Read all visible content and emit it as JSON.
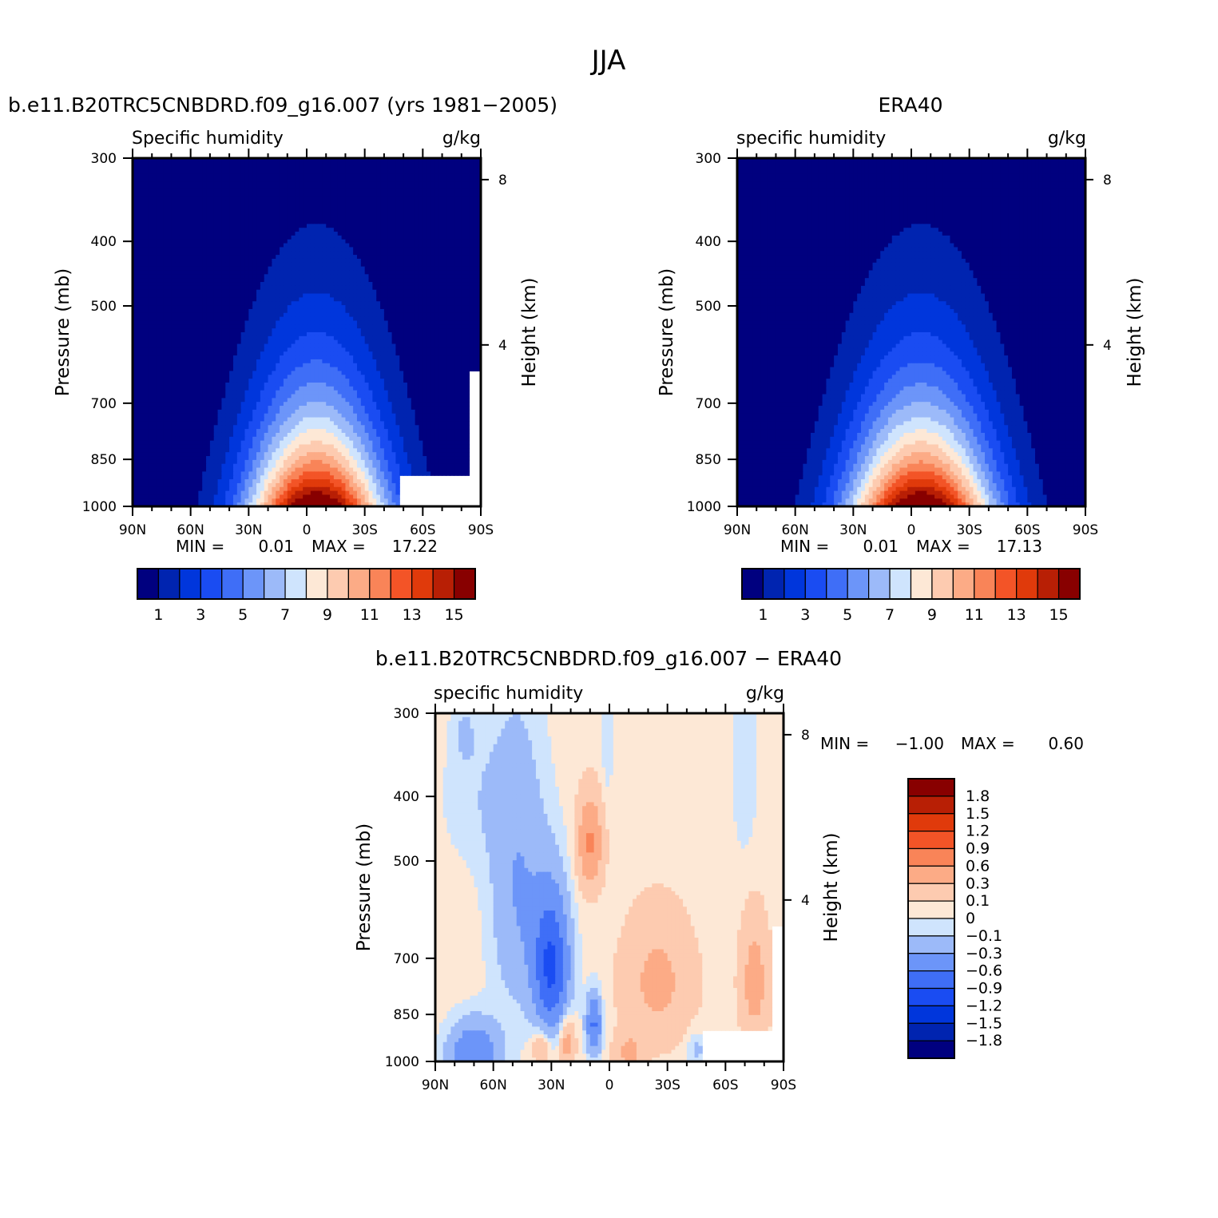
{
  "figure": {
    "title": "JJA"
  },
  "palettes": {
    "full": [
      "#00007f",
      "#0024b0",
      "#0036dc",
      "#1a4cf2",
      "#3f6ef7",
      "#6c95f9",
      "#9cbaf9",
      "#cfe4fd",
      "#fde8d6",
      "#fdcbb0",
      "#fcab86",
      "#f98458",
      "#f35427",
      "#e03a0b",
      "#b81f05",
      "#880000"
    ],
    "diff": [
      "#00007f",
      "#0024b0",
      "#0036dc",
      "#1a4cf2",
      "#3f6ef7",
      "#6c95f9",
      "#9cbaf9",
      "#cfe4fd",
      "#fde8d6",
      "#fdcbb0",
      "#fcab86",
      "#f98458",
      "#f35427",
      "#e03a0b",
      "#b81f05",
      "#880000"
    ]
  },
  "chart_data": [
    {
      "type": "heatmap",
      "id": "model",
      "title": "b.e11.B20TRC5CNBDRD.f09_g16.007 (yrs 1981-2005)",
      "left_label": "Specific humidity",
      "right_label": "g/kg",
      "xlabel": "",
      "ylabel": "Pressure (mb)",
      "y2label": "Height (km)",
      "x_ticks": [
        "90N",
        "60N",
        "30N",
        "0",
        "30S",
        "60S",
        "90S"
      ],
      "y_ticks": [
        "300",
        "400",
        "500",
        "700",
        "850",
        "1000"
      ],
      "y2_ticks": [
        "8",
        "4"
      ],
      "stats": {
        "min_label": "MIN =",
        "min": "0.01",
        "max_label": "MAX =",
        "max": "17.22"
      },
      "colorbar": {
        "orientation": "horizontal",
        "labels": [
          "1",
          "3",
          "5",
          "7",
          "9",
          "11",
          "13",
          "15"
        ]
      },
      "levels": [
        1,
        2,
        3,
        4,
        5,
        6,
        7,
        8,
        9,
        10,
        11,
        12,
        13,
        14,
        15
      ],
      "field": {
        "peak": 17.22,
        "peak_lat": -5,
        "peak_spread": 36,
        "scale_height_km": 2.4,
        "surface_mask": "model"
      }
    },
    {
      "type": "heatmap",
      "id": "obs",
      "title": "ERA40",
      "left_label": "specific humidity",
      "right_label": "g/kg",
      "xlabel": "",
      "ylabel": "Pressure (mb)",
      "y2label": "Height (km)",
      "x_ticks": [
        "90N",
        "60N",
        "30N",
        "0",
        "30S",
        "60S",
        "90S"
      ],
      "y_ticks": [
        "300",
        "400",
        "500",
        "700",
        "850",
        "1000"
      ],
      "y2_ticks": [
        "8",
        "4"
      ],
      "stats": {
        "min_label": "MIN =",
        "min": "0.01",
        "max_label": "MAX =",
        "max": "17.13"
      },
      "colorbar": {
        "orientation": "horizontal",
        "labels": [
          "1",
          "3",
          "5",
          "7",
          "9",
          "11",
          "13",
          "15"
        ]
      },
      "levels": [
        1,
        2,
        3,
        4,
        5,
        6,
        7,
        8,
        9,
        10,
        11,
        12,
        13,
        14,
        15
      ],
      "field": {
        "peak": 17.13,
        "peak_lat": -5,
        "peak_spread": 38,
        "scale_height_km": 2.4,
        "surface_mask": "none"
      }
    },
    {
      "type": "heatmap",
      "id": "diff",
      "title": "b.e11.B20TRC5CNBDRD.f09_g16.007 - ERA40",
      "left_label": "specific humidity",
      "right_label": "g/kg",
      "xlabel": "",
      "ylabel": "Pressure (mb)",
      "y2label": "Height (km)",
      "x_ticks": [
        "90N",
        "60N",
        "30N",
        "0",
        "30S",
        "60S",
        "90S"
      ],
      "y_ticks": [
        "300",
        "400",
        "500",
        "700",
        "850",
        "1000"
      ],
      "y2_ticks": [
        "8",
        "4"
      ],
      "stats": {
        "min_label": "MIN =",
        "min": "-1.00",
        "max_label": "MAX =",
        "max": "0.60"
      },
      "colorbar": {
        "orientation": "vertical",
        "labels": [
          "1.8",
          "1.5",
          "1.2",
          "0.9",
          "0.6",
          "0.3",
          "0.1",
          "0",
          "-0.1",
          "-0.3",
          "-0.6",
          "-0.9",
          "-1.2",
          "-1.5",
          "-1.8"
        ]
      },
      "levels": [
        -1.8,
        -1.5,
        -1.2,
        -0.9,
        -0.6,
        -0.3,
        -0.1,
        0,
        0.1,
        0.3,
        0.6,
        0.9,
        1.2,
        1.5,
        1.8
      ],
      "field": {
        "background": 0.05,
        "features": [
          {
            "lat": 30,
            "p": 720,
            "sx": 9,
            "sy": 170,
            "amp": -1.0
          },
          {
            "lat": 8,
            "p": 880,
            "sx": 4,
            "sy": 90,
            "amp": -0.7
          },
          {
            "lat": 70,
            "p": 980,
            "sx": 13,
            "sy": 110,
            "amp": -0.65
          },
          {
            "lat": 47,
            "p": 560,
            "sx": 14,
            "sy": 260,
            "amp": -0.35
          },
          {
            "lat": 67,
            "p": 400,
            "sx": 20,
            "sy": 110,
            "amp": -0.12
          },
          {
            "lat": 10,
            "p": 470,
            "sx": 6,
            "sy": 70,
            "amp": 0.6
          },
          {
            "lat": -25,
            "p": 760,
            "sx": 17,
            "sy": 160,
            "amp": 0.32
          },
          {
            "lat": 22,
            "p": 930,
            "sx": 4,
            "sy": 80,
            "amp": 0.42
          },
          {
            "lat": 35,
            "p": 950,
            "sx": 5,
            "sy": 60,
            "amp": 0.3
          },
          {
            "lat": -10,
            "p": 970,
            "sx": 7,
            "sy": 60,
            "amp": 0.32
          },
          {
            "lat": -75,
            "p": 760,
            "sx": 7,
            "sy": 150,
            "amp": 0.38
          },
          {
            "lat": -45,
            "p": 960,
            "sx": 5,
            "sy": 60,
            "amp": -0.2
          },
          {
            "lat": -70,
            "p": 360,
            "sx": 6,
            "sy": 120,
            "amp": -0.15
          },
          {
            "lat": 1,
            "p": 330,
            "sx": 3,
            "sy": 70,
            "amp": -0.12
          },
          {
            "lat": 75,
            "p": 320,
            "sx": 6,
            "sy": 40,
            "amp": -0.12
          }
        ],
        "surface_mask": "diff"
      }
    }
  ]
}
